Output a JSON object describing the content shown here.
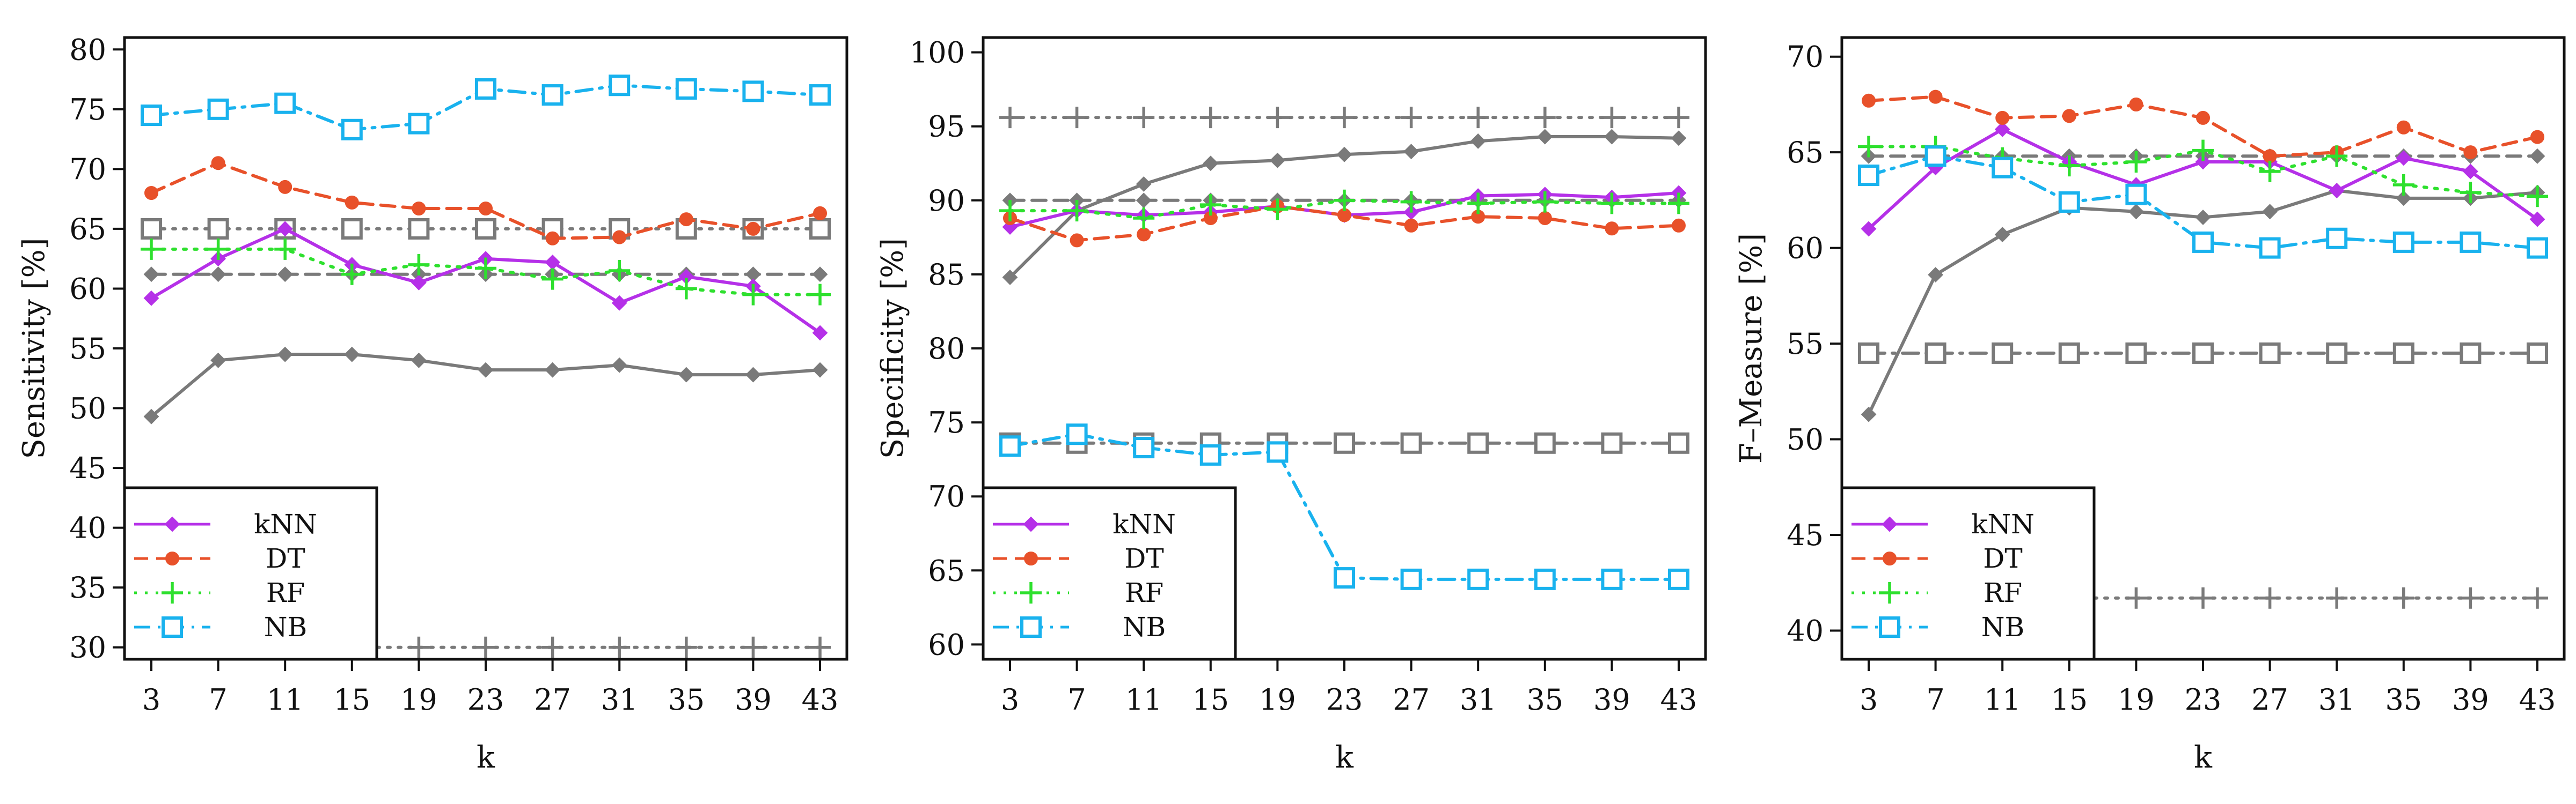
{
  "series_styles": {
    "kNN": {
      "color": "#b530e8",
      "marker": "diamond",
      "dash": "none"
    },
    "DT": {
      "color": "#e8512a",
      "marker": "circle",
      "dash": "dashed"
    },
    "RF": {
      "color": "#2ee02e",
      "marker": "plus",
      "dash": "dotted"
    },
    "NB": {
      "color": "#19b2ee",
      "marker": "square-open",
      "dash": "dashdot"
    },
    "baseline_color": "#7a7a7a"
  },
  "chart_data": [
    {
      "type": "line",
      "title": "",
      "xlabel": "k",
      "ylabel": "Sensitivity [%]",
      "x": [
        3,
        7,
        11,
        15,
        19,
        23,
        27,
        31,
        35,
        39,
        43
      ],
      "ylim": [
        29,
        81
      ],
      "yticks": [
        30,
        35,
        40,
        45,
        50,
        55,
        60,
        65,
        70,
        75,
        80
      ],
      "grid": false,
      "legend": "bottom-left",
      "legend_entries": [
        "kNN",
        "DT",
        "RF",
        "NB"
      ],
      "series": [
        {
          "name": "kNN",
          "values": [
            59.2,
            62.5,
            65.0,
            62.0,
            60.5,
            62.5,
            62.2,
            58.8,
            61.0,
            60.2,
            56.3
          ]
        },
        {
          "name": "DT",
          "values": [
            68.0,
            70.5,
            68.5,
            67.2,
            66.7,
            66.7,
            64.2,
            64.3,
            65.8,
            65.0,
            66.3
          ]
        },
        {
          "name": "RF",
          "values": [
            63.3,
            63.3,
            63.3,
            61.2,
            62.0,
            61.7,
            60.8,
            61.5,
            60.0,
            59.5,
            59.5
          ]
        },
        {
          "name": "NB",
          "values": [
            74.5,
            75.0,
            75.5,
            73.3,
            73.8,
            76.7,
            76.2,
            77.0,
            76.7,
            76.5,
            76.2
          ]
        }
      ],
      "baselines": [
        {
          "marker": "square-open",
          "dash": "dotted",
          "values": [
            65.0,
            65.0,
            65.0,
            65.0,
            65.0,
            65.0,
            65.0,
            65.0,
            65.0,
            65.0,
            65.0
          ]
        },
        {
          "marker": "diamond",
          "dash": "dashed",
          "values": [
            61.2,
            61.2,
            61.2,
            61.2,
            61.2,
            61.2,
            61.2,
            61.2,
            61.2,
            61.2,
            61.2
          ]
        },
        {
          "marker": "diamond",
          "dash": "none",
          "values": [
            49.3,
            54.0,
            54.5,
            54.5,
            54.0,
            53.2,
            53.2,
            53.6,
            52.8,
            52.8,
            53.2
          ]
        },
        {
          "marker": "plus",
          "dash": "dotted",
          "values": [
            30.0,
            30.0,
            30.0,
            30.0,
            30.0,
            30.0,
            30.0,
            30.0,
            30.0,
            30.0,
            30.0
          ]
        }
      ]
    },
    {
      "type": "line",
      "title": "",
      "xlabel": "k",
      "ylabel": "Specificity [%]",
      "x": [
        3,
        7,
        11,
        15,
        19,
        23,
        27,
        31,
        35,
        39,
        43
      ],
      "ylim": [
        59,
        101
      ],
      "yticks": [
        60,
        65,
        70,
        75,
        80,
        85,
        90,
        95,
        100
      ],
      "grid": false,
      "legend": "bottom-left",
      "legend_entries": [
        "kNN",
        "DT",
        "RF",
        "NB"
      ],
      "series": [
        {
          "name": "kNN",
          "values": [
            88.2,
            89.3,
            89.0,
            89.2,
            89.6,
            89.0,
            89.2,
            90.3,
            90.4,
            90.2,
            90.5
          ]
        },
        {
          "name": "DT",
          "values": [
            88.8,
            87.3,
            87.7,
            88.8,
            89.6,
            89.0,
            88.3,
            88.9,
            88.8,
            88.1,
            88.3
          ]
        },
        {
          "name": "RF",
          "values": [
            89.3,
            89.3,
            88.8,
            89.7,
            89.4,
            90.0,
            89.9,
            89.8,
            89.9,
            89.8,
            89.8
          ]
        },
        {
          "name": "NB",
          "values": [
            73.4,
            74.2,
            73.3,
            72.8,
            73.0,
            64.5,
            64.4,
            64.4,
            64.4,
            64.4,
            64.4
          ]
        }
      ],
      "baselines": [
        {
          "marker": "plus",
          "dash": "dotted",
          "values": [
            95.6,
            95.6,
            95.6,
            95.6,
            95.6,
            95.6,
            95.6,
            95.6,
            95.6,
            95.6,
            95.6
          ]
        },
        {
          "marker": "diamond",
          "dash": "dashed",
          "values": [
            90.0,
            90.0,
            90.0,
            90.0,
            90.0,
            90.0,
            90.0,
            90.0,
            90.0,
            90.0,
            90.0
          ]
        },
        {
          "marker": "diamond",
          "dash": "none",
          "values": [
            84.8,
            89.3,
            91.1,
            92.5,
            92.7,
            93.1,
            93.3,
            94.0,
            94.3,
            94.3,
            94.2
          ]
        },
        {
          "marker": "square-open",
          "dash": "dashdot",
          "values": [
            73.6,
            73.6,
            73.6,
            73.6,
            73.6,
            73.6,
            73.6,
            73.6,
            73.6,
            73.6,
            73.6
          ]
        }
      ]
    },
    {
      "type": "line",
      "title": "",
      "xlabel": "k",
      "ylabel": "F–Measure [%]",
      "x": [
        3,
        7,
        11,
        15,
        19,
        23,
        27,
        31,
        35,
        39,
        43
      ],
      "ylim": [
        38.5,
        71
      ],
      "yticks": [
        40,
        45,
        50,
        55,
        60,
        65,
        70
      ],
      "grid": false,
      "legend": "bottom-left",
      "legend_entries": [
        "kNN",
        "DT",
        "RF",
        "NB"
      ],
      "series": [
        {
          "name": "kNN",
          "values": [
            61.0,
            64.2,
            66.2,
            64.5,
            63.3,
            64.5,
            64.5,
            63.0,
            64.7,
            64.0,
            61.5
          ]
        },
        {
          "name": "DT",
          "values": [
            67.7,
            67.9,
            66.8,
            66.9,
            67.5,
            66.8,
            64.8,
            65.0,
            66.3,
            65.0,
            65.8
          ]
        },
        {
          "name": "RF",
          "values": [
            65.3,
            65.3,
            64.7,
            64.3,
            64.5,
            65.1,
            64.0,
            64.8,
            63.3,
            62.9,
            62.7
          ]
        },
        {
          "name": "NB",
          "values": [
            63.8,
            64.8,
            64.2,
            62.4,
            62.8,
            60.3,
            60.0,
            60.5,
            60.3,
            60.3,
            60.0
          ]
        }
      ],
      "baselines": [
        {
          "marker": "diamond",
          "dash": "none",
          "values": [
            51.3,
            58.6,
            60.7,
            62.1,
            61.9,
            61.6,
            61.9,
            63.0,
            62.6,
            62.6,
            62.9
          ]
        },
        {
          "marker": "diamond",
          "dash": "dashed",
          "values": [
            64.8,
            64.8,
            64.8,
            64.8,
            64.8,
            64.8,
            64.8,
            64.8,
            64.8,
            64.8,
            64.8
          ]
        },
        {
          "marker": "square-open",
          "dash": "dashdot",
          "values": [
            54.5,
            54.5,
            54.5,
            54.5,
            54.5,
            54.5,
            54.5,
            54.5,
            54.5,
            54.5,
            54.5
          ]
        },
        {
          "marker": "plus",
          "dash": "dotted",
          "values": [
            41.7,
            41.7,
            41.7,
            41.7,
            41.7,
            41.7,
            41.7,
            41.7,
            41.7,
            41.7,
            41.7
          ]
        }
      ]
    }
  ]
}
